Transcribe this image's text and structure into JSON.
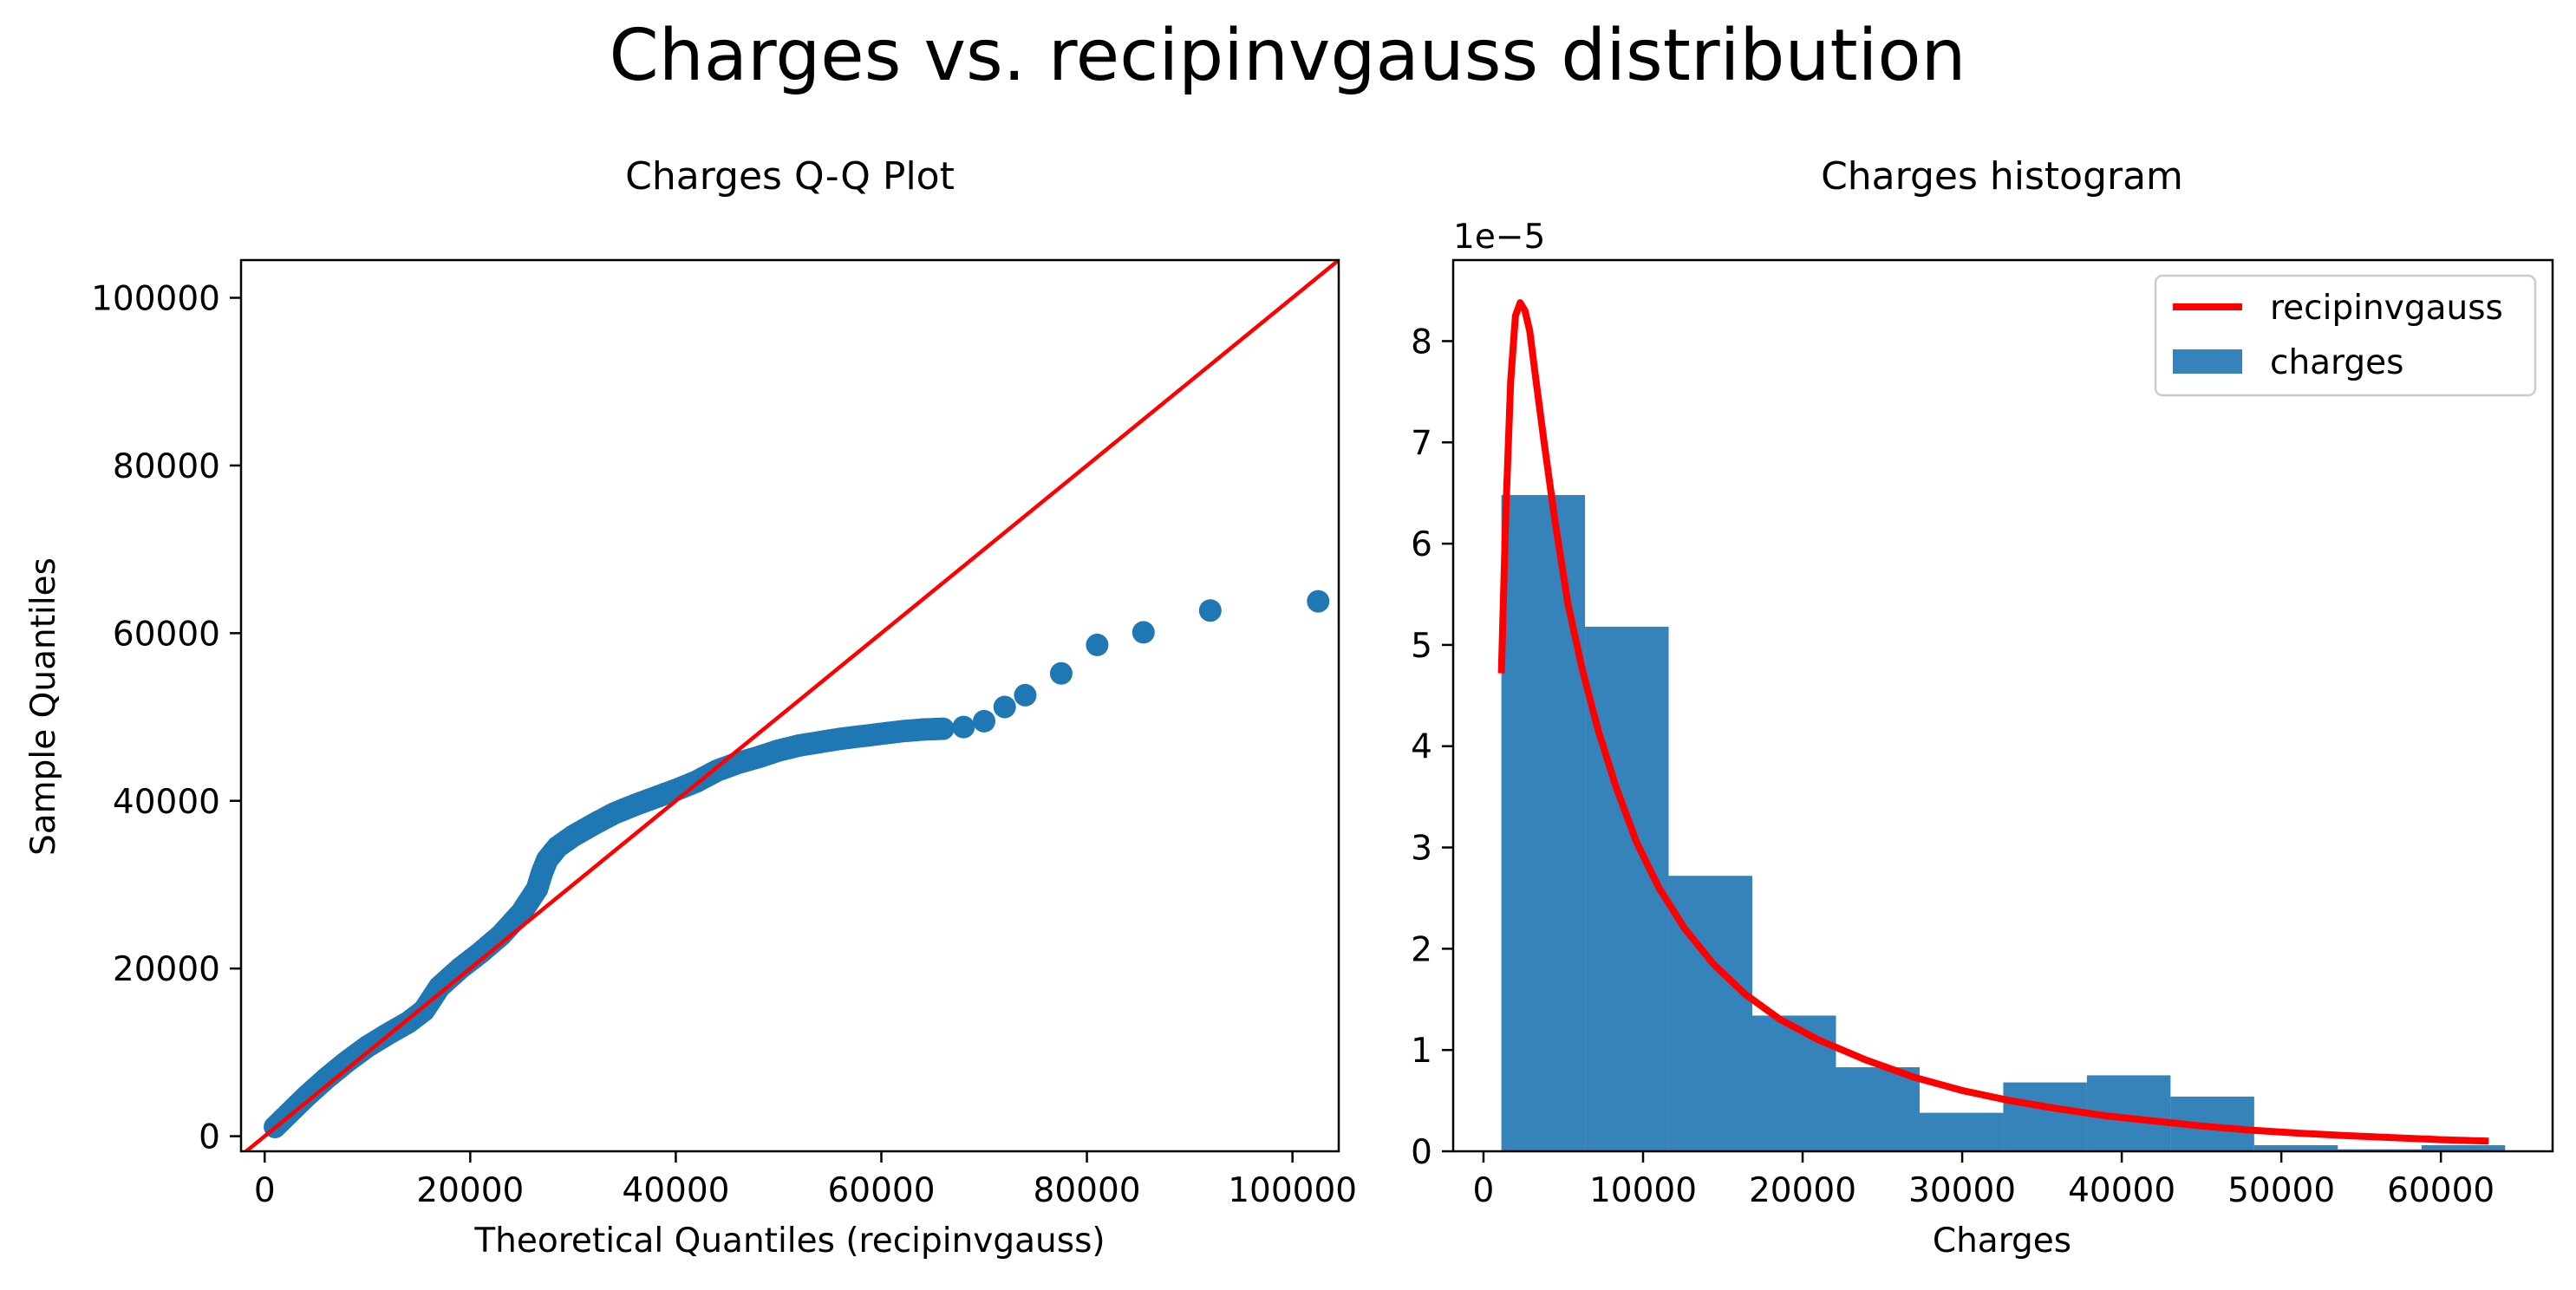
{
  "figure": {
    "suptitle": "Charges vs. recipinvgauss distribution"
  },
  "chart_data": [
    {
      "type": "scatter",
      "title": "Charges Q-Q Plot",
      "xlabel": "Theoretical Quantiles (recipinvgauss)",
      "ylabel": "Sample Quantiles",
      "xlim": [
        -2300,
        104500
      ],
      "ylim": [
        -1800,
        104500
      ],
      "xticks": [
        0,
        20000,
        40000,
        60000,
        80000,
        100000
      ],
      "yticks": [
        0,
        20000,
        40000,
        60000,
        80000,
        100000
      ],
      "xtick_labels": [
        "0",
        "20000",
        "40000",
        "60000",
        "80000",
        "100000"
      ],
      "ytick_labels": [
        "0",
        "20000",
        "40000",
        "60000",
        "80000",
        "100000"
      ],
      "marker_color": "#1f77b4",
      "reference_line_color": "#ff0000",
      "reference_line": {
        "x": [
          -2300,
          104500
        ],
        "y": [
          -2300,
          104500
        ]
      },
      "curve_anchors": [
        [
          1000,
          1100
        ],
        [
          2000,
          2300
        ],
        [
          4000,
          4700
        ],
        [
          6000,
          6900
        ],
        [
          8000,
          8900
        ],
        [
          10000,
          10700
        ],
        [
          12000,
          12200
        ],
        [
          14000,
          13600
        ],
        [
          15500,
          15000
        ],
        [
          17000,
          17800
        ],
        [
          19000,
          20000
        ],
        [
          21000,
          21900
        ],
        [
          23000,
          24000
        ],
        [
          25000,
          26700
        ],
        [
          26500,
          29500
        ],
        [
          27000,
          31500
        ],
        [
          27500,
          33000
        ],
        [
          28500,
          34500
        ],
        [
          30000,
          35800
        ],
        [
          32000,
          37200
        ],
        [
          34000,
          38500
        ],
        [
          36000,
          39500
        ],
        [
          38000,
          40400
        ],
        [
          40000,
          41300
        ],
        [
          42000,
          42300
        ],
        [
          44000,
          43600
        ],
        [
          46000,
          44500
        ],
        [
          48000,
          45200
        ],
        [
          50000,
          46000
        ],
        [
          52000,
          46600
        ],
        [
          54000,
          47000
        ],
        [
          56000,
          47400
        ],
        [
          58000,
          47700
        ],
        [
          60000,
          48000
        ],
        [
          62000,
          48300
        ],
        [
          64000,
          48500
        ],
        [
          66000,
          48600
        ]
      ],
      "tail_points": [
        [
          68000,
          48800
        ],
        [
          70000,
          49500
        ],
        [
          72000,
          51200
        ],
        [
          74000,
          52600
        ],
        [
          77500,
          55200
        ],
        [
          81000,
          58600
        ],
        [
          85500,
          60100
        ],
        [
          92000,
          62700
        ],
        [
          102500,
          63800
        ]
      ]
    },
    {
      "type": "bar",
      "title": "Charges histogram",
      "xlabel": "Charges",
      "ylabel": "",
      "scale_label": "1e−5",
      "xlim": [
        -1900,
        67000
      ],
      "ylim": [
        0,
        8.8
      ],
      "xticks": [
        0,
        10000,
        20000,
        30000,
        40000,
        50000,
        60000
      ],
      "yticks": [
        0,
        1,
        2,
        3,
        4,
        5,
        6,
        7,
        8
      ],
      "xtick_labels": [
        "0",
        "10000",
        "20000",
        "30000",
        "40000",
        "50000",
        "60000"
      ],
      "ytick_labels": [
        "0",
        "1",
        "2",
        "3",
        "4",
        "5",
        "6",
        "7",
        "8"
      ],
      "bar_color": "#3683bb",
      "bin_edges": [
        1122,
        6364,
        11606,
        16848,
        22090,
        27332,
        32574,
        37816,
        43058,
        48300,
        53542,
        58784,
        64026
      ],
      "values": [
        6.48,
        5.18,
        2.72,
        1.34,
        0.83,
        0.38,
        0.68,
        0.75,
        0.54,
        0.06,
        0.02,
        0.06
      ],
      "curve_color": "#ff0000",
      "curve": {
        "x": [
          1122,
          1400,
          1700,
          2000,
          2300,
          2600,
          2900,
          3300,
          3800,
          4500,
          5300,
          6200,
          7200,
          8300,
          9600,
          11000,
          12600,
          14400,
          16400,
          18600,
          21000,
          24000,
          27000,
          30000,
          33000,
          36000,
          39000,
          42000,
          45000,
          48000,
          51000,
          54000,
          57000,
          60000,
          63000
        ],
        "y": [
          4.72,
          6.3,
          7.6,
          8.25,
          8.38,
          8.3,
          8.1,
          7.6,
          7.0,
          6.2,
          5.4,
          4.75,
          4.15,
          3.6,
          3.05,
          2.6,
          2.2,
          1.85,
          1.55,
          1.3,
          1.1,
          0.9,
          0.73,
          0.6,
          0.5,
          0.42,
          0.35,
          0.3,
          0.25,
          0.21,
          0.18,
          0.155,
          0.135,
          0.115,
          0.1
        ]
      },
      "legend": {
        "position": "upper right",
        "entries": [
          {
            "label": "recipinvgauss",
            "kind": "line"
          },
          {
            "label": "charges",
            "kind": "patch"
          }
        ]
      }
    }
  ]
}
